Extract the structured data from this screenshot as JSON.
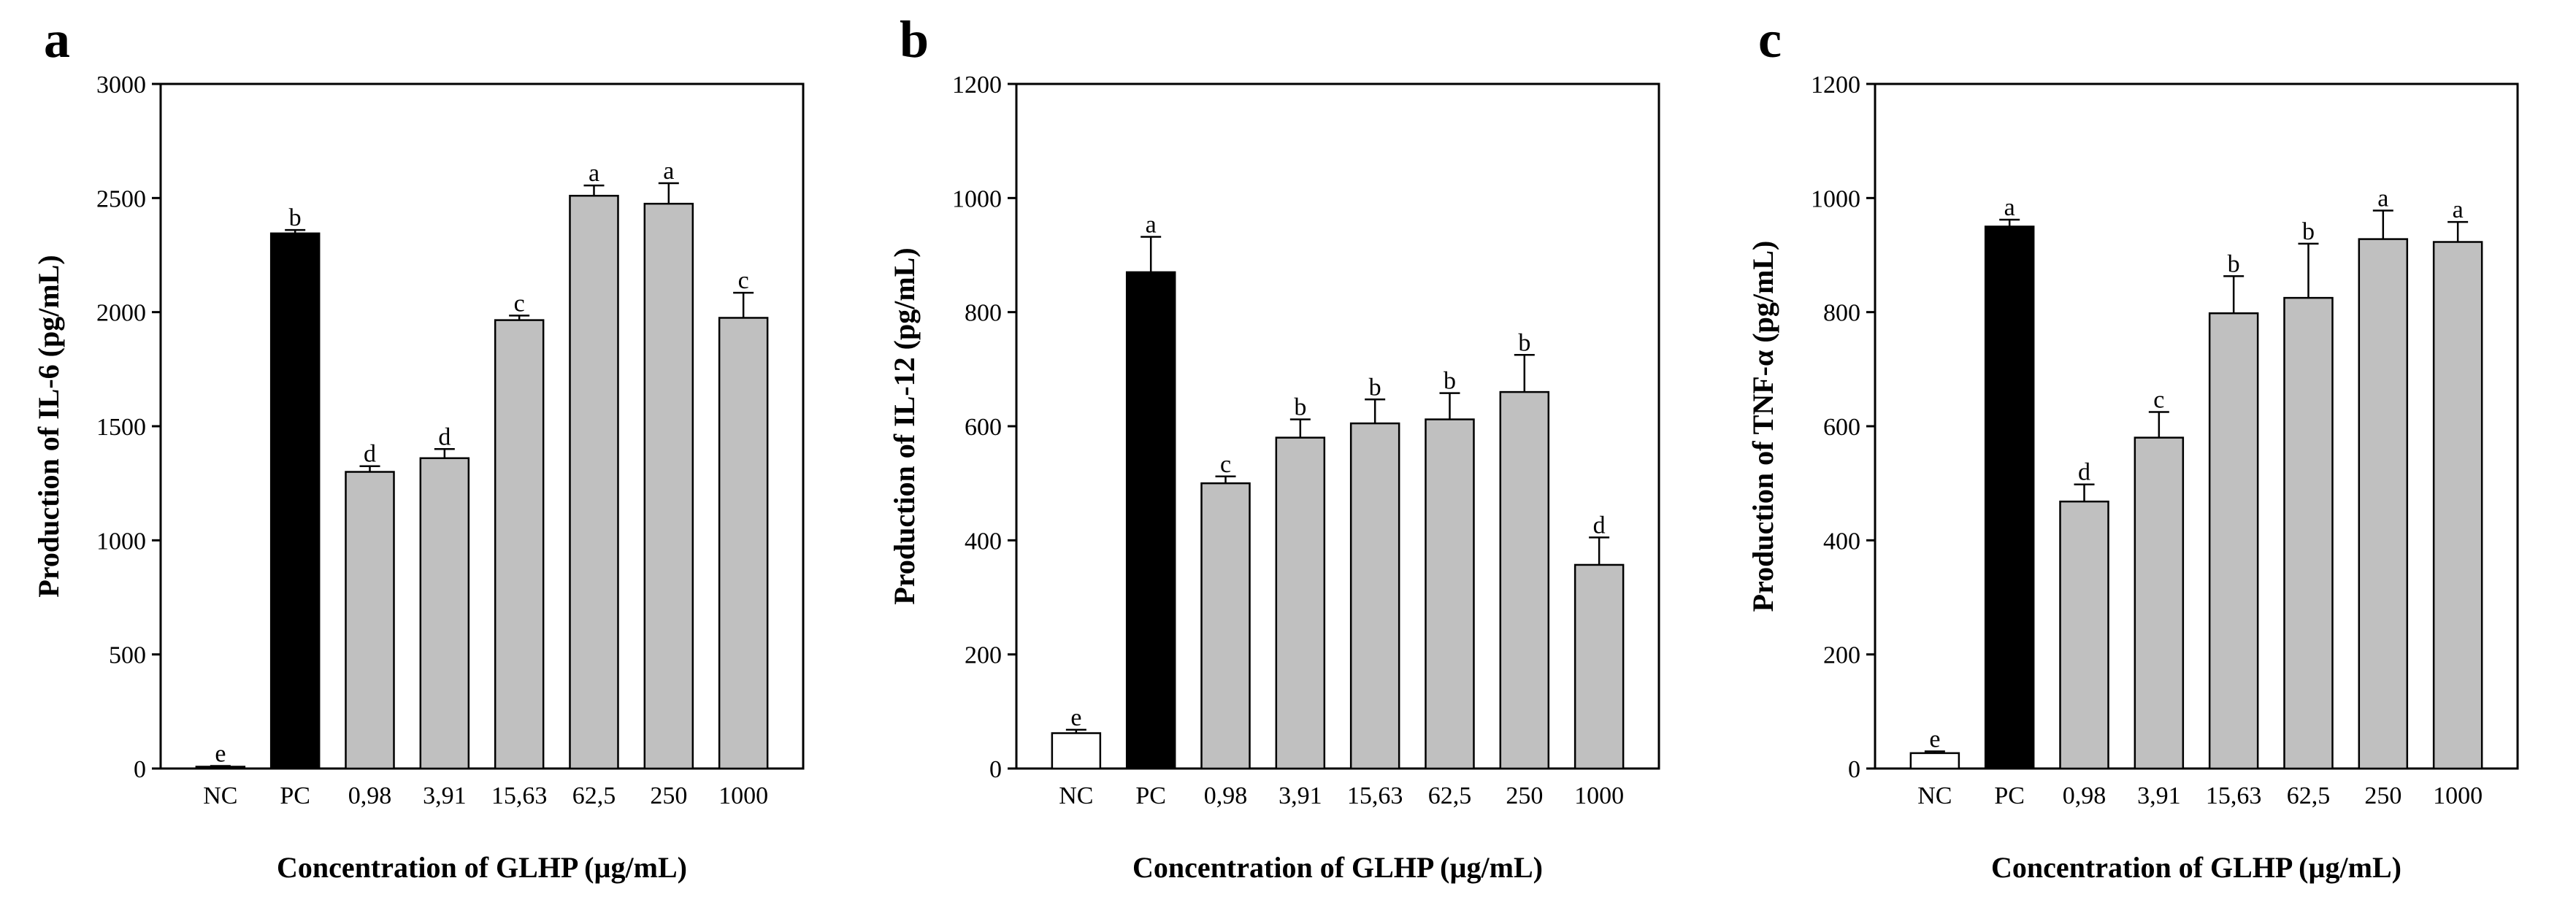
{
  "chart_data": [
    {
      "type": "bar",
      "panel": "a",
      "ylabel": "Production of IL-6 (pg/mL)",
      "xlabel": "Concentration of GLHP (µg/mL)",
      "ylim": [
        0,
        3000
      ],
      "yticks": [
        0,
        500,
        1000,
        1500,
        2000,
        2500,
        3000
      ],
      "categories": [
        "NC",
        "PC",
        "0,98",
        "3,91",
        "15,63",
        "62,5",
        "250",
        "1000"
      ],
      "values": [
        8,
        2345,
        1300,
        1360,
        1965,
        2510,
        2475,
        1975
      ],
      "errors": [
        3,
        15,
        25,
        40,
        20,
        45,
        90,
        110
      ],
      "letters": [
        "e",
        "b",
        "d",
        "d",
        "c",
        "a",
        "a",
        "c"
      ],
      "fills": [
        "#ffffff",
        "#000000",
        "#c0c0c0",
        "#c0c0c0",
        "#c0c0c0",
        "#c0c0c0",
        "#c0c0c0",
        "#c0c0c0"
      ]
    },
    {
      "type": "bar",
      "panel": "b",
      "ylabel": "Production of IL-12 (pg/mL)",
      "xlabel": "Concentration of GLHP (µg/mL)",
      "ylim": [
        0,
        1200
      ],
      "yticks": [
        0,
        200,
        400,
        600,
        800,
        1000,
        1200
      ],
      "categories": [
        "NC",
        "PC",
        "0,98",
        "3,91",
        "15,63",
        "62,5",
        "250",
        "1000"
      ],
      "values": [
        62,
        870,
        500,
        580,
        605,
        612,
        660,
        357
      ],
      "errors": [
        6,
        62,
        12,
        32,
        42,
        46,
        65,
        48
      ],
      "letters": [
        "e",
        "a",
        "c",
        "b",
        "b",
        "b",
        "b",
        "d"
      ],
      "fills": [
        "#ffffff",
        "#000000",
        "#c0c0c0",
        "#c0c0c0",
        "#c0c0c0",
        "#c0c0c0",
        "#c0c0c0",
        "#c0c0c0"
      ]
    },
    {
      "type": "bar",
      "panel": "c",
      "ylabel": "Production of TNF-α (pg/mL)",
      "xlabel": "Concentration of GLHP (µg/mL)",
      "ylim": [
        0,
        1200
      ],
      "yticks": [
        0,
        200,
        400,
        600,
        800,
        1000,
        1200
      ],
      "categories": [
        "NC",
        "PC",
        "0,98",
        "3,91",
        "15,63",
        "62,5",
        "250",
        "1000"
      ],
      "values": [
        27,
        950,
        468,
        580,
        798,
        825,
        928,
        923
      ],
      "errors": [
        3,
        12,
        30,
        45,
        65,
        95,
        50,
        35
      ],
      "letters": [
        "e",
        "a",
        "d",
        "c",
        "b",
        "b",
        "a",
        "a"
      ],
      "fills": [
        "#ffffff",
        "#000000",
        "#c0c0c0",
        "#c0c0c0",
        "#c0c0c0",
        "#c0c0c0",
        "#c0c0c0",
        "#c0c0c0"
      ]
    }
  ]
}
